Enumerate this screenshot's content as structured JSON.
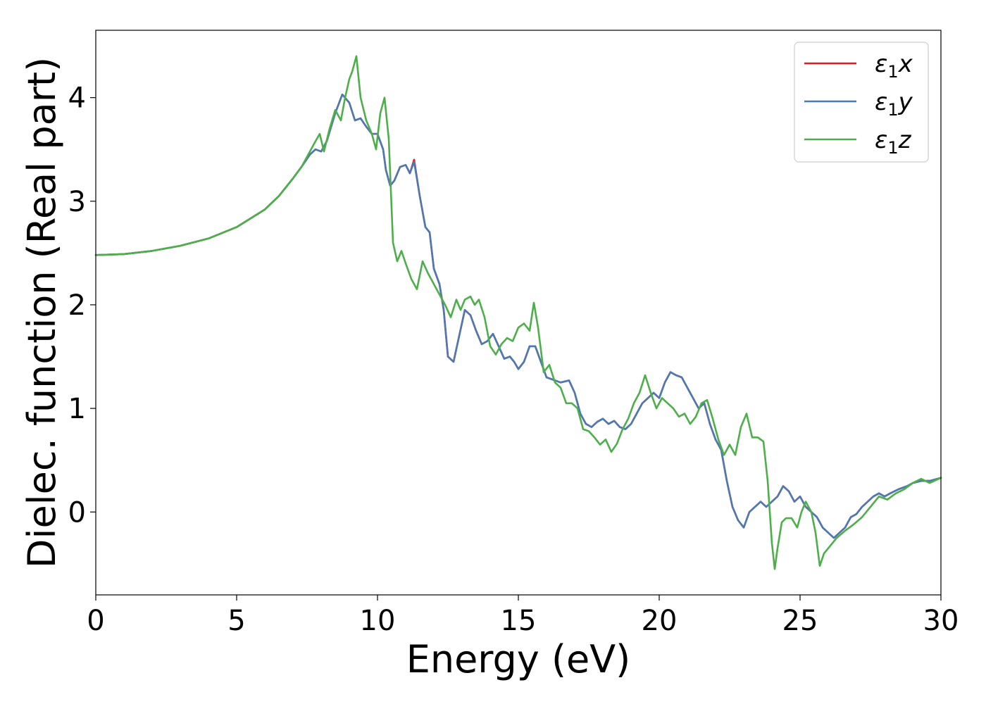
{
  "chart_data": {
    "type": "line",
    "title": "",
    "xlabel": "Energy (eV)",
    "ylabel": "Dielec. function (Real part)",
    "xlim": [
      0,
      30
    ],
    "ylim": [
      -0.8,
      4.65
    ],
    "xticks": [
      0,
      5,
      10,
      15,
      20,
      25,
      30
    ],
    "yticks": [
      0,
      1,
      2,
      3,
      4
    ],
    "grid": false,
    "legend_position": "top-right",
    "series": [
      {
        "name": "ε1x",
        "legend_base": "ε",
        "legend_sub": "1",
        "legend_suffix": "x",
        "color": "#e41a1c",
        "x": [
          0,
          1,
          2,
          3,
          4,
          5,
          6,
          6.5,
          7,
          7.3,
          7.6,
          7.8,
          8.0,
          8.2,
          8.5,
          8.75,
          9.0,
          9.2,
          9.4,
          9.6,
          9.8,
          10.0,
          10.2,
          10.3,
          10.45,
          10.6,
          10.8,
          11.0,
          11.15,
          11.3,
          11.5,
          11.7,
          11.85,
          12.0,
          12.2,
          12.35,
          12.5,
          12.7,
          12.9,
          13.1,
          13.3,
          13.5,
          13.7,
          13.9,
          14.1,
          14.3,
          14.5,
          14.7,
          14.85,
          15.0,
          15.2,
          15.4,
          15.6,
          15.8,
          16.0,
          16.2,
          16.5,
          16.8,
          17.0,
          17.2,
          17.4,
          17.6,
          17.8,
          18.0,
          18.2,
          18.4,
          18.6,
          18.8,
          19.0,
          19.2,
          19.4,
          19.6,
          19.8,
          20.0,
          20.2,
          20.4,
          20.6,
          20.8,
          21.0,
          21.2,
          21.4,
          21.6,
          21.8,
          22.0,
          22.2,
          22.4,
          22.6,
          22.8,
          23.0,
          23.2,
          23.4,
          23.6,
          23.8,
          24.0,
          24.2,
          24.4,
          24.6,
          24.8,
          25.0,
          25.2,
          25.4,
          25.6,
          25.8,
          26.0,
          26.2,
          26.4,
          26.6,
          26.8,
          27.0,
          27.2,
          27.4,
          27.6,
          27.8,
          28.0,
          28.2,
          28.5,
          28.8,
          29.0,
          29.3,
          29.6,
          30.0
        ],
        "y": [
          2.48,
          2.49,
          2.52,
          2.57,
          2.64,
          2.75,
          2.92,
          3.05,
          3.22,
          3.33,
          3.45,
          3.5,
          3.48,
          3.58,
          3.85,
          4.03,
          3.95,
          3.78,
          3.8,
          3.72,
          3.65,
          3.65,
          3.5,
          3.3,
          3.15,
          3.2,
          3.33,
          3.35,
          3.27,
          3.4,
          3.05,
          2.75,
          2.7,
          2.35,
          2.2,
          1.95,
          1.5,
          1.45,
          1.7,
          1.95,
          1.9,
          1.75,
          1.62,
          1.65,
          1.72,
          1.6,
          1.48,
          1.5,
          1.45,
          1.38,
          1.45,
          1.6,
          1.6,
          1.45,
          1.3,
          1.28,
          1.25,
          1.27,
          1.15,
          0.95,
          0.85,
          0.82,
          0.87,
          0.9,
          0.85,
          0.88,
          0.82,
          0.8,
          0.85,
          0.95,
          1.05,
          1.1,
          1.15,
          1.1,
          1.25,
          1.35,
          1.32,
          1.3,
          1.2,
          1.1,
          1.0,
          1.05,
          0.85,
          0.7,
          0.6,
          0.3,
          0.05,
          -0.08,
          -0.15,
          0.0,
          0.05,
          0.1,
          0.05,
          0.1,
          0.15,
          0.25,
          0.2,
          0.1,
          0.15,
          0.05,
          0.0,
          -0.05,
          -0.15,
          -0.2,
          -0.25,
          -0.2,
          -0.15,
          -0.05,
          -0.02,
          0.05,
          0.1,
          0.15,
          0.18,
          0.15,
          0.18,
          0.22,
          0.25,
          0.28,
          0.3,
          0.3,
          0.33
        ]
      },
      {
        "name": "ε1y",
        "legend_base": "ε",
        "legend_sub": "1",
        "legend_suffix": "y",
        "color": "#4a7ab5",
        "x": [
          0,
          1,
          2,
          3,
          4,
          5,
          6,
          6.5,
          7,
          7.3,
          7.6,
          7.8,
          8.0,
          8.2,
          8.5,
          8.75,
          9.0,
          9.2,
          9.4,
          9.6,
          9.8,
          10.0,
          10.2,
          10.3,
          10.45,
          10.6,
          10.8,
          11.0,
          11.15,
          11.3,
          11.5,
          11.7,
          11.85,
          12.0,
          12.2,
          12.35,
          12.5,
          12.7,
          12.9,
          13.1,
          13.3,
          13.5,
          13.7,
          13.9,
          14.1,
          14.3,
          14.5,
          14.7,
          14.85,
          15.0,
          15.2,
          15.4,
          15.6,
          15.8,
          16.0,
          16.2,
          16.5,
          16.8,
          17.0,
          17.2,
          17.4,
          17.6,
          17.8,
          18.0,
          18.2,
          18.4,
          18.6,
          18.8,
          19.0,
          19.2,
          19.4,
          19.6,
          19.8,
          20.0,
          20.2,
          20.4,
          20.6,
          20.8,
          21.0,
          21.2,
          21.4,
          21.6,
          21.8,
          22.0,
          22.2,
          22.4,
          22.6,
          22.8,
          23.0,
          23.2,
          23.4,
          23.6,
          23.8,
          24.0,
          24.2,
          24.4,
          24.6,
          24.8,
          25.0,
          25.2,
          25.4,
          25.6,
          25.8,
          26.0,
          26.2,
          26.4,
          26.6,
          26.8,
          27.0,
          27.2,
          27.4,
          27.6,
          27.8,
          28.0,
          28.2,
          28.5,
          28.8,
          29.0,
          29.3,
          29.6,
          30.0
        ],
        "y": [
          2.48,
          2.49,
          2.52,
          2.57,
          2.64,
          2.75,
          2.92,
          3.05,
          3.22,
          3.33,
          3.45,
          3.5,
          3.48,
          3.58,
          3.85,
          4.03,
          3.95,
          3.78,
          3.8,
          3.72,
          3.65,
          3.65,
          3.5,
          3.3,
          3.15,
          3.2,
          3.33,
          3.35,
          3.27,
          3.38,
          3.05,
          2.75,
          2.7,
          2.35,
          2.2,
          1.95,
          1.5,
          1.45,
          1.7,
          1.95,
          1.9,
          1.75,
          1.62,
          1.65,
          1.72,
          1.6,
          1.48,
          1.5,
          1.45,
          1.38,
          1.45,
          1.6,
          1.6,
          1.45,
          1.3,
          1.28,
          1.25,
          1.27,
          1.15,
          0.95,
          0.85,
          0.82,
          0.87,
          0.9,
          0.85,
          0.88,
          0.82,
          0.8,
          0.85,
          0.95,
          1.05,
          1.1,
          1.15,
          1.1,
          1.25,
          1.35,
          1.32,
          1.3,
          1.2,
          1.1,
          1.0,
          1.05,
          0.85,
          0.7,
          0.6,
          0.3,
          0.05,
          -0.08,
          -0.15,
          0.0,
          0.05,
          0.1,
          0.05,
          0.1,
          0.15,
          0.25,
          0.2,
          0.1,
          0.15,
          0.05,
          0.0,
          -0.05,
          -0.15,
          -0.2,
          -0.25,
          -0.2,
          -0.15,
          -0.05,
          -0.02,
          0.05,
          0.1,
          0.15,
          0.18,
          0.15,
          0.18,
          0.22,
          0.25,
          0.28,
          0.3,
          0.3,
          0.33
        ]
      },
      {
        "name": "ε1z",
        "legend_base": "ε",
        "legend_sub": "1",
        "legend_suffix": "z",
        "color": "#4daf4a",
        "x": [
          0,
          1,
          2,
          3,
          4,
          5,
          6,
          6.5,
          7,
          7.3,
          7.6,
          7.8,
          7.95,
          8.1,
          8.3,
          8.5,
          8.7,
          8.85,
          9.0,
          9.1,
          9.25,
          9.4,
          9.6,
          9.8,
          9.95,
          10.1,
          10.25,
          10.4,
          10.55,
          10.7,
          10.85,
          11.0,
          11.2,
          11.4,
          11.6,
          11.8,
          12.0,
          12.2,
          12.4,
          12.6,
          12.8,
          12.95,
          13.1,
          13.3,
          13.45,
          13.6,
          13.8,
          14.0,
          14.2,
          14.4,
          14.6,
          14.8,
          15.0,
          15.2,
          15.4,
          15.55,
          15.7,
          15.9,
          16.1,
          16.3,
          16.5,
          16.7,
          16.9,
          17.1,
          17.3,
          17.5,
          17.7,
          17.9,
          18.1,
          18.3,
          18.5,
          18.7,
          18.9,
          19.1,
          19.3,
          19.5,
          19.7,
          19.9,
          20.1,
          20.3,
          20.5,
          20.7,
          20.9,
          21.1,
          21.3,
          21.5,
          21.7,
          21.9,
          22.1,
          22.3,
          22.5,
          22.7,
          22.9,
          23.1,
          23.3,
          23.5,
          23.7,
          23.85,
          24.0,
          24.1,
          24.2,
          24.35,
          24.5,
          24.7,
          24.9,
          25.05,
          25.2,
          25.4,
          25.55,
          25.7,
          25.85,
          26.0,
          26.3,
          26.6,
          26.9,
          27.2,
          27.5,
          27.8,
          28.1,
          28.4,
          28.7,
          29.0,
          29.3,
          29.6,
          30.0
        ],
        "y": [
          2.48,
          2.49,
          2.52,
          2.57,
          2.64,
          2.75,
          2.92,
          3.05,
          3.22,
          3.33,
          3.48,
          3.58,
          3.65,
          3.48,
          3.7,
          3.88,
          3.78,
          4.0,
          4.18,
          4.25,
          4.4,
          4.0,
          3.78,
          3.65,
          3.5,
          3.85,
          4.0,
          3.6,
          2.6,
          2.42,
          2.52,
          2.4,
          2.25,
          2.15,
          2.42,
          2.3,
          2.2,
          2.1,
          2.0,
          1.88,
          2.05,
          1.95,
          2.05,
          2.08,
          2.0,
          2.05,
          1.88,
          1.6,
          1.52,
          1.62,
          1.68,
          1.65,
          1.78,
          1.82,
          1.75,
          2.02,
          1.78,
          1.35,
          1.42,
          1.25,
          1.2,
          1.05,
          1.05,
          1.0,
          0.8,
          0.78,
          0.72,
          0.65,
          0.7,
          0.58,
          0.66,
          0.8,
          0.9,
          1.05,
          1.15,
          1.32,
          1.15,
          1.0,
          1.1,
          1.05,
          1.0,
          0.92,
          0.95,
          0.85,
          0.92,
          1.05,
          1.08,
          0.9,
          0.7,
          0.55,
          0.65,
          0.55,
          0.82,
          0.95,
          0.72,
          0.72,
          0.68,
          0.3,
          -0.3,
          -0.55,
          -0.35,
          -0.1,
          -0.06,
          -0.06,
          -0.15,
          0.0,
          0.1,
          0.0,
          -0.2,
          -0.52,
          -0.4,
          -0.35,
          -0.25,
          -0.18,
          -0.12,
          -0.05,
          0.05,
          0.15,
          0.12,
          0.18,
          0.22,
          0.28,
          0.32,
          0.28,
          0.33
        ]
      }
    ]
  }
}
